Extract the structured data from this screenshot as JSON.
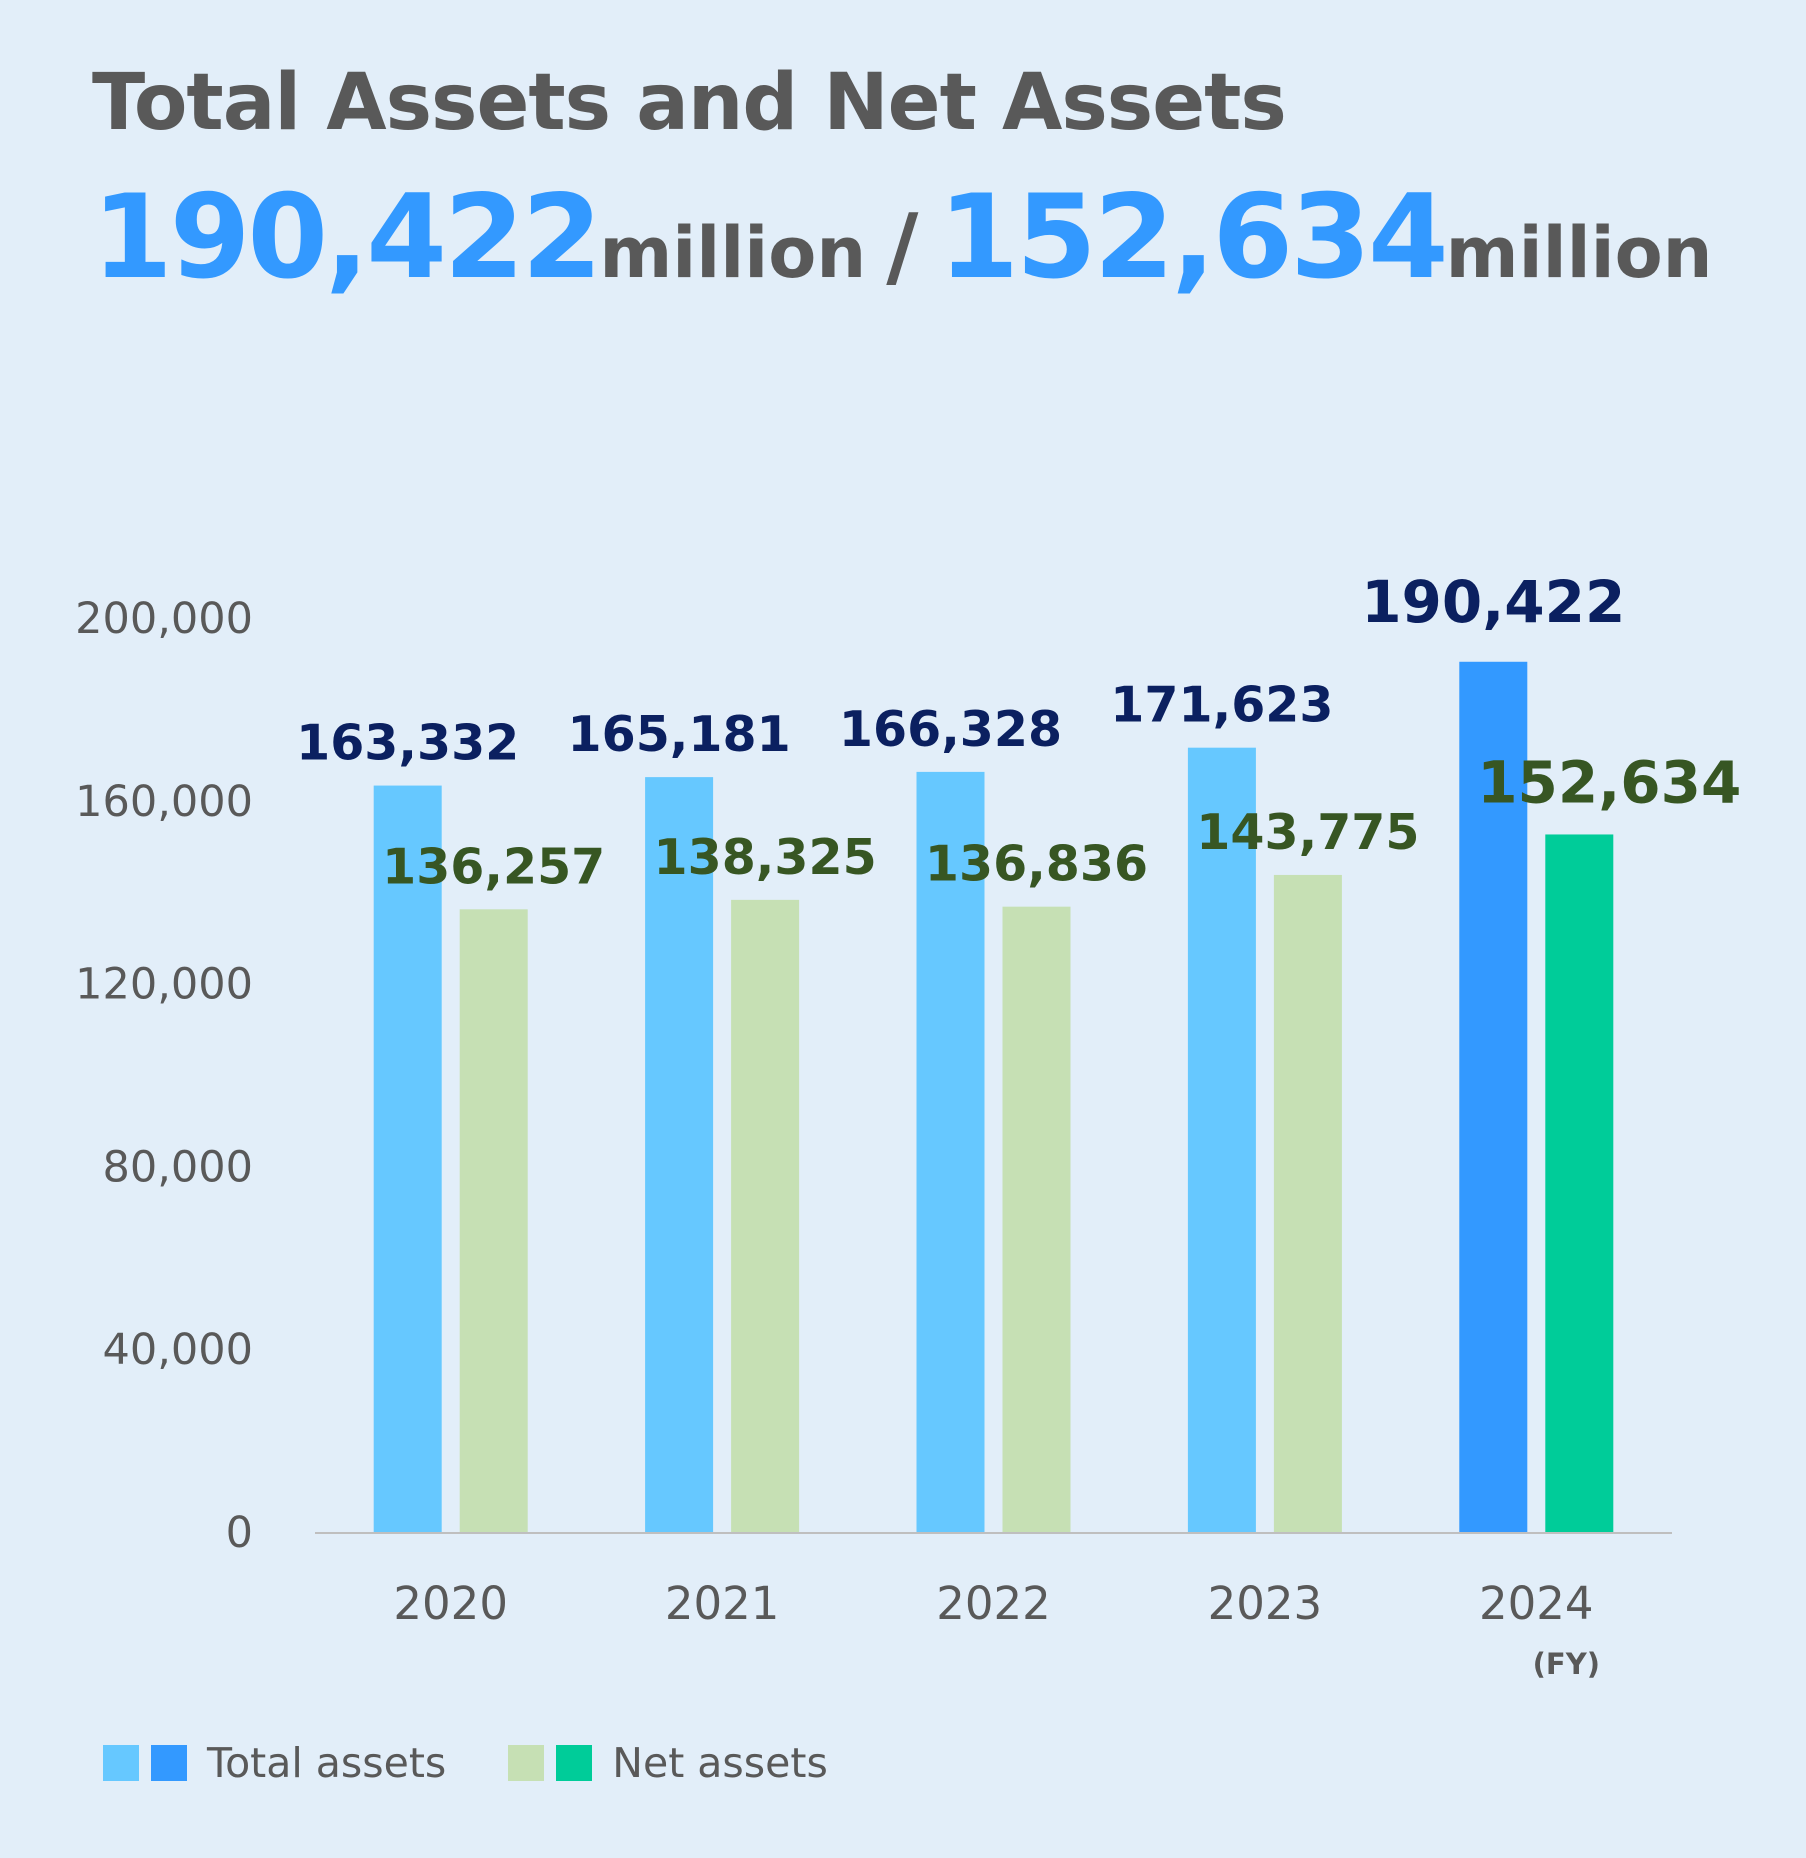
{
  "title": "Total Assets and Net Assets",
  "headline": {
    "total_value": "190,422",
    "total_unit": "million",
    "separator": "/",
    "net_value": "152,634",
    "net_unit": "million"
  },
  "colors": {
    "background": "#e2eef9",
    "total_past": "#66c8ff",
    "total_latest": "#3399ff",
    "net_past": "#c6e0b4",
    "net_latest": "#00cc99",
    "total_label": "#0b2060",
    "net_label": "#375623",
    "axis_text": "#595959"
  },
  "legend": {
    "total_label": "Total assets",
    "net_label": "Net assets"
  },
  "chart_data": {
    "type": "bar",
    "categories": [
      "2020",
      "2021",
      "2022",
      "2023",
      "2024"
    ],
    "x_unit_label": "(FY)",
    "series": [
      {
        "name": "Total assets",
        "values": [
          163332,
          165181,
          166328,
          171623,
          190422
        ],
        "labels": [
          "163,332",
          "165,181",
          "166,328",
          "171,623",
          "190,422"
        ]
      },
      {
        "name": "Net assets",
        "values": [
          136257,
          138325,
          136836,
          143775,
          152634
        ],
        "labels": [
          "136,257",
          "138,325",
          "136,836",
          "143,775",
          "152,634"
        ]
      }
    ],
    "ylim": [
      0,
      200000
    ],
    "yticks": [
      0,
      40000,
      80000,
      120000,
      160000,
      200000
    ],
    "ytick_labels": [
      "0",
      "40,000",
      "80,000",
      "120,000",
      "160,000",
      "200,000"
    ],
    "grid": false,
    "legend_position": "bottom-left"
  }
}
